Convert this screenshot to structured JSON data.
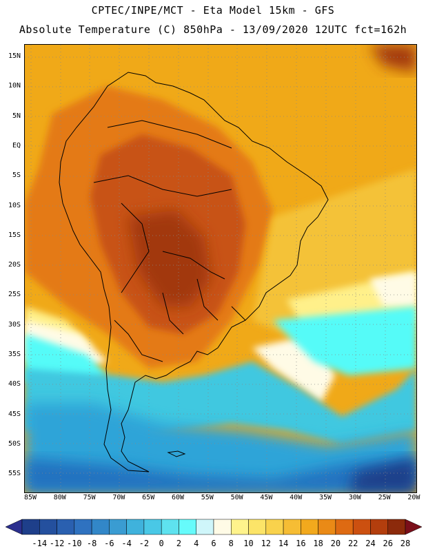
{
  "header": {
    "line1": "CPTEC/INPE/MCT - Eta Model 15km - GFS",
    "line2": "Absolute Temperature (C) 850hPa - 13/09/2020 12UTC fct=162h"
  },
  "map": {
    "lat_labels": [
      "15N",
      "10N",
      "5N",
      "EQ",
      "5S",
      "10S",
      "15S",
      "20S",
      "25S",
      "30S",
      "35S",
      "40S",
      "45S",
      "50S",
      "55S"
    ],
    "lon_labels": [
      "85W",
      "80W",
      "75W",
      "70W",
      "65W",
      "60W",
      "55W",
      "50W",
      "45W",
      "40W",
      "35W",
      "30W",
      "25W",
      "20W"
    ],
    "field_colors": {
      "deep_warm": "#a2390f",
      "warm": "#c85212",
      "orange": "#e47a16",
      "amber": "#f0a918",
      "gold": "#f4c238",
      "yellow": "#fff08a",
      "cream": "#fffbe6",
      "cyan": "#55fbf8",
      "teal": "#3fc8e0",
      "sky": "#2ea4d8",
      "blue": "#2472c0",
      "navy": "#1e3f8a"
    }
  },
  "colorbar": {
    "ticks": [
      "-14",
      "-12",
      "-10",
      "-8",
      "-6",
      "-4",
      "-2",
      "0",
      "2",
      "4",
      "6",
      "8",
      "10",
      "12",
      "14",
      "16",
      "18",
      "20",
      "22",
      "24",
      "26",
      "28"
    ],
    "colors": [
      "#1e3f8a",
      "#24509e",
      "#2a60b0",
      "#2f72c0",
      "#3287c8",
      "#3a9cd2",
      "#3fb2dc",
      "#49c8e6",
      "#5ee2ef",
      "#66fbfb",
      "#cff6fa",
      "#fffbe6",
      "#fff38c",
      "#fce468",
      "#f9d24c",
      "#f6bd34",
      "#f2a91d",
      "#ea8a16",
      "#de6a12",
      "#cc5010",
      "#b33e0d",
      "#8c2a0b"
    ],
    "low_arrow_color": "#2b2f8e",
    "high_arrow_color": "#7a0f1a"
  }
}
